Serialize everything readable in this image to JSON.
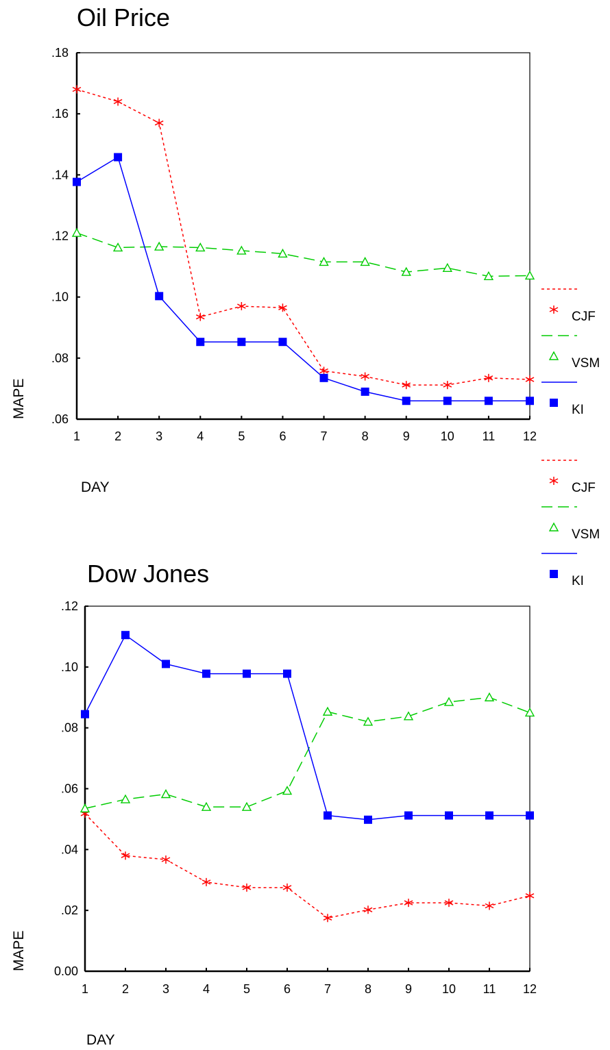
{
  "chart_data": [
    {
      "type": "line",
      "title": "Oil Price",
      "xlabel": "DAY",
      "ylabel": "MAPE",
      "x": [
        1,
        2,
        3,
        4,
        5,
        6,
        7,
        8,
        9,
        10,
        11,
        12
      ],
      "ylim": [
        0.06,
        0.18
      ],
      "ytick_labels": [
        ".06",
        ".08",
        ".10",
        ".12",
        ".14",
        ".16",
        ".18"
      ],
      "grid": false,
      "legend_position": "right",
      "series": [
        {
          "name": "CJF",
          "color": "#ff0000",
          "dash": "dotted",
          "marker": "asterisk",
          "values": [
            0.168,
            0.164,
            0.157,
            0.0935,
            0.097,
            0.0965,
            0.0758,
            0.074,
            0.0712,
            0.0712,
            0.0735,
            0.073
          ]
        },
        {
          "name": "VSM",
          "color": "#00cc00",
          "dash": "dashed",
          "marker": "triangle",
          "values": [
            0.121,
            0.1162,
            0.1165,
            0.1162,
            0.1152,
            0.1142,
            0.1115,
            0.1115,
            0.1082,
            0.1095,
            0.1068,
            0.107
          ]
        },
        {
          "name": "KI",
          "color": "#0000ff",
          "dash": "solid",
          "marker": "square",
          "values": [
            0.1377,
            0.1458,
            0.1003,
            0.0853,
            0.0853,
            0.0853,
            0.0735,
            0.069,
            0.066,
            0.066,
            0.066,
            0.066
          ]
        }
      ]
    },
    {
      "type": "line",
      "title": "Dow Jones",
      "xlabel": "DAY",
      "ylabel": "MAPE",
      "x": [
        1,
        2,
        3,
        4,
        5,
        6,
        7,
        8,
        9,
        10,
        11,
        12
      ],
      "ylim": [
        0.0,
        0.12
      ],
      "ytick_labels": [
        "0.00",
        ".02",
        ".04",
        ".06",
        ".08",
        ".10",
        ".12"
      ],
      "grid": false,
      "legend_position": "right",
      "series": [
        {
          "name": "CJF",
          "color": "#ff0000",
          "dash": "dotted",
          "marker": "asterisk",
          "values": [
            0.0518,
            0.038,
            0.0367,
            0.0293,
            0.0275,
            0.0275,
            0.0175,
            0.0202,
            0.0225,
            0.0225,
            0.0215,
            0.0248
          ]
        },
        {
          "name": "VSM",
          "color": "#00cc00",
          "dash": "dashed",
          "marker": "triangle",
          "values": [
            0.0535,
            0.0565,
            0.0582,
            0.054,
            0.054,
            0.0593,
            0.0853,
            0.082,
            0.0838,
            0.0885,
            0.09,
            0.085
          ]
        },
        {
          "name": "KI",
          "color": "#0000ff",
          "dash": "solid",
          "marker": "square",
          "values": [
            0.0845,
            0.1105,
            0.101,
            0.0978,
            0.0978,
            0.0978,
            0.0512,
            0.0498,
            0.0512,
            0.0512,
            0.0512,
            0.0512
          ]
        }
      ]
    }
  ]
}
